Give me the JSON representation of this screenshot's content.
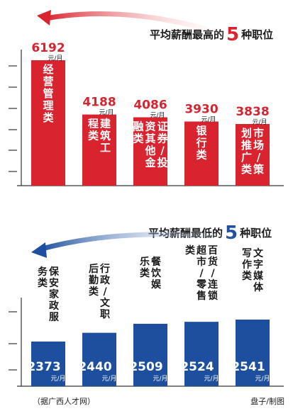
{
  "top": {
    "title_pre": "平均薪酬最高的",
    "title_num": "5",
    "title_post": "种职位",
    "color": "#d9232e",
    "bars": [
      {
        "value": 6192,
        "label": "6192",
        "unit": "元/月",
        "category": "经营管理类"
      },
      {
        "value": 4188,
        "label": "4188",
        "unit": "元/月",
        "category": "建筑工程类"
      },
      {
        "value": 4086,
        "label": "4086",
        "unit": "元/月",
        "category": "证券/投资其他金融类"
      },
      {
        "value": 3930,
        "label": "3930",
        "unit": "元/月",
        "category": "银行类"
      },
      {
        "value": 3838,
        "label": "3838",
        "unit": "元/月",
        "category": "市场/策划推广类"
      }
    ]
  },
  "bottom": {
    "title_pre": "平均薪酬最低的",
    "title_num": "5",
    "title_post": "种职位",
    "color": "#1e4f9e",
    "bars": [
      {
        "value": 2373,
        "label": "2373",
        "unit": "元/月",
        "category": "保安家政服务类"
      },
      {
        "value": 2440,
        "label": "2440",
        "unit": "元/月",
        "category": "行政/文职后勤类"
      },
      {
        "value": 2509,
        "label": "2509",
        "unit": "元/月",
        "category": "餐饮娱乐类"
      },
      {
        "value": 2524,
        "label": "2524",
        "unit": "元/月",
        "category": "百货/连锁超市/零售类"
      },
      {
        "value": 2541,
        "label": "2541",
        "unit": "元/月",
        "category": "文字媒体写作类"
      }
    ]
  },
  "footer": {
    "source": "（据广西人才网）",
    "credit": "盘子/制图"
  },
  "chart_data": [
    {
      "type": "bar",
      "title": "平均薪酬最高的5种职位",
      "categories": [
        "经营管理类",
        "建筑工程类",
        "证券/投资其他金融类",
        "银行类",
        "市场/策划推广类"
      ],
      "values": [
        6192,
        4188,
        4086,
        3930,
        3838
      ],
      "unit": "元/月"
    },
    {
      "type": "bar",
      "title": "平均薪酬最低的5种职位",
      "categories": [
        "保安家政服务类",
        "行政/文职后勤类",
        "餐饮娱乐类",
        "百货/连锁超市/零售类",
        "文字媒体写作类"
      ],
      "values": [
        2373,
        2440,
        2509,
        2524,
        2541
      ],
      "unit": "元/月"
    }
  ]
}
